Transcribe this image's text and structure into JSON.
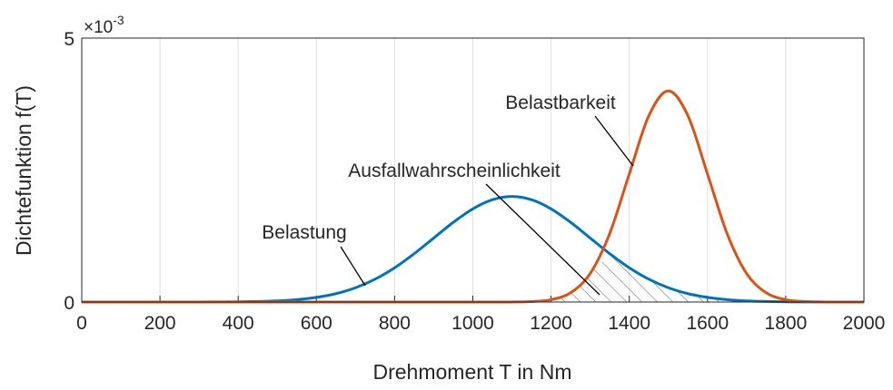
{
  "chart_data": {
    "type": "line",
    "x_label": "Drehmoment T in Nm",
    "y_label": "Dichtefunktion f(T)",
    "y_multiplier": "×10",
    "y_multiplier_exponent": "-3",
    "x": [
      0,
      50,
      100,
      150,
      200,
      250,
      300,
      350,
      400,
      450,
      500,
      550,
      600,
      650,
      700,
      750,
      800,
      850,
      900,
      950,
      1000,
      1050,
      1100,
      1150,
      1200,
      1250,
      1300,
      1350,
      1400,
      1450,
      1500,
      1550,
      1600,
      1650,
      1700,
      1750,
      1800,
      1850,
      1900,
      1950,
      2000
    ],
    "series": [
      {
        "name": "Belastung",
        "color": "#0072BD",
        "values": [
          0,
          0,
          0,
          0,
          0,
          0,
          0,
          2e-06,
          4e-06,
          1e-05,
          2.2e-05,
          4.6e-05,
          8.8e-05,
          0.000159,
          0.000271,
          0.000433,
          0.000649,
          0.000916,
          0.001213,
          0.00151,
          0.001765,
          0.001938,
          0.002,
          0.001938,
          0.001765,
          0.00151,
          0.001213,
          0.000916,
          0.000649,
          0.000433,
          0.000271,
          0.000159,
          8.8e-05,
          4.6e-05,
          2.2e-05,
          1e-05,
          4e-06,
          2e-06,
          0,
          0,
          0
        ]
      },
      {
        "name": "Belastbarkeit",
        "color": "#D95319",
        "values": [
          0,
          0,
          0,
          0,
          0,
          0,
          0,
          0,
          0,
          0,
          0,
          0,
          0,
          0,
          0,
          0,
          0,
          0,
          0,
          0,
          0,
          0,
          1e-06,
          9e-06,
          4.4e-05,
          0.000176,
          0.000541,
          0.001299,
          0.002426,
          0.00353,
          0.004,
          0.00353,
          0.002426,
          0.001299,
          0.000541,
          0.000176,
          4.4e-05,
          9e-06,
          1e-06,
          0,
          0
        ]
      }
    ],
    "annotations": [
      "Belastung",
      "Ausfallwahrscheinlichkeit",
      "Belastbarkeit"
    ],
    "xlim": [
      0,
      2000
    ],
    "xticks": [
      0,
      200,
      400,
      600,
      800,
      1000,
      1200,
      1400,
      1600,
      1800,
      2000
    ],
    "ylim": [
      0,
      0.005
    ],
    "yticks": [
      0,
      {
        "value": 0.005,
        "label": "5"
      }
    ],
    "grid": "x"
  }
}
